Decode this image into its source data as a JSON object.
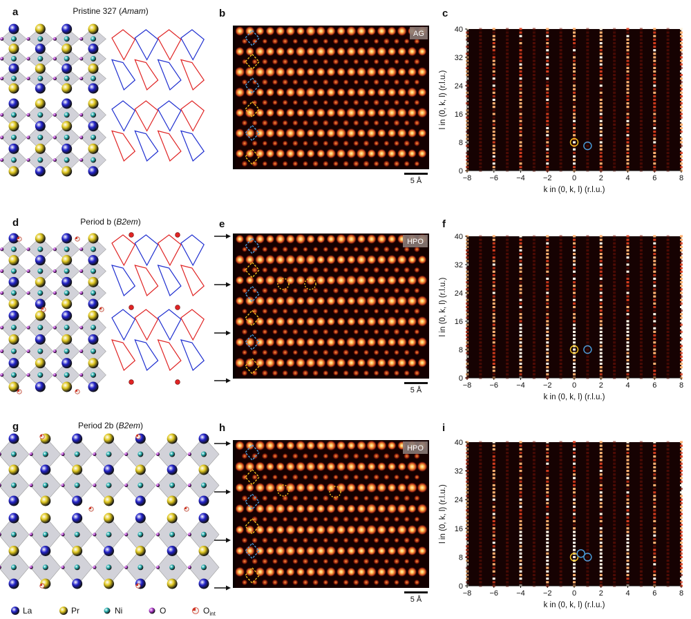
{
  "rows": [
    {
      "structure": {
        "letter": "a",
        "title": "Pristine 327 (",
        "space_group": "Amam",
        "title_suffix": ")"
      },
      "stem": {
        "letter": "b",
        "badge": "AG",
        "scale": "5 Å"
      },
      "diff": {
        "letter": "c"
      }
    },
    {
      "structure": {
        "letter": "d",
        "title": "Period b (",
        "space_group": "B2em",
        "title_suffix": ")"
      },
      "stem": {
        "letter": "e",
        "badge": "HPO",
        "scale": "5 Å"
      },
      "diff": {
        "letter": "f"
      }
    },
    {
      "structure": {
        "letter": "g",
        "title": "Period 2b (",
        "space_group": "B2em",
        "title_suffix": ")"
      },
      "stem": {
        "letter": "h",
        "badge": "HPO",
        "scale": "5 Å"
      },
      "diff": {
        "letter": "i"
      }
    }
  ],
  "legend": [
    {
      "label": "La",
      "color": "#2222c8"
    },
    {
      "label": "Pr",
      "color": "#d8c21c"
    },
    {
      "label": "Ni",
      "color": "#2ab3b3"
    },
    {
      "label": "O",
      "color": "#b33ad0"
    },
    {
      "label": "O",
      "sub": "int",
      "color": "#d03a2a"
    }
  ],
  "colors": {
    "network_red": "#e02424",
    "network_blue": "#1f2fd0",
    "apex_yellow": "#f0c020",
    "apex_blue": "#4a9bd8"
  },
  "chart_data": [
    {
      "type": "heatmap",
      "panel": "c",
      "colormap": "black-red-white",
      "xlabel": "k in (0, k, l) (r.l.u.)",
      "ylabel": "l in (0, k, l) (r.l.u.)",
      "xlim": [
        -8,
        8
      ],
      "ylim": [
        0,
        40
      ],
      "xticks": [
        -8,
        -6,
        -4,
        -2,
        0,
        2,
        4,
        6,
        8
      ],
      "yticks": [
        0,
        8,
        16,
        24,
        32,
        40
      ],
      "markers": [
        {
          "k": 0,
          "l": 8,
          "color": "yellow"
        },
        {
          "k": 1,
          "l": 7,
          "color": "blue"
        }
      ]
    },
    {
      "type": "heatmap",
      "panel": "f",
      "colormap": "black-red-white",
      "xlabel": "k in (0, k, l) (r.l.u.)",
      "ylabel": "l in (0, k, l) (r.l.u.)",
      "xlim": [
        -8,
        8
      ],
      "ylim": [
        0,
        40
      ],
      "xticks": [
        -8,
        -6,
        -4,
        -2,
        0,
        2,
        4,
        6,
        8
      ],
      "yticks": [
        0,
        8,
        16,
        24,
        32,
        40
      ],
      "markers": [
        {
          "k": 0,
          "l": 8,
          "color": "yellow"
        },
        {
          "k": 1,
          "l": 8,
          "color": "blue"
        }
      ]
    },
    {
      "type": "heatmap",
      "panel": "i",
      "colormap": "black-red-white",
      "xlabel": "k in (0, k, l) (r.l.u.)",
      "ylabel": "l in (0, k, l) (r.l.u.)",
      "xlim": [
        -8,
        8
      ],
      "ylim": [
        0,
        40
      ],
      "xticks": [
        -8,
        -6,
        -4,
        -2,
        0,
        2,
        4,
        6,
        8
      ],
      "yticks": [
        0,
        8,
        16,
        24,
        32,
        40
      ],
      "markers": [
        {
          "k": 0,
          "l": 8,
          "color": "yellow"
        },
        {
          "k": 0.5,
          "l": 9,
          "color": "blue"
        },
        {
          "k": 1,
          "l": 8,
          "color": "blue"
        }
      ]
    }
  ]
}
